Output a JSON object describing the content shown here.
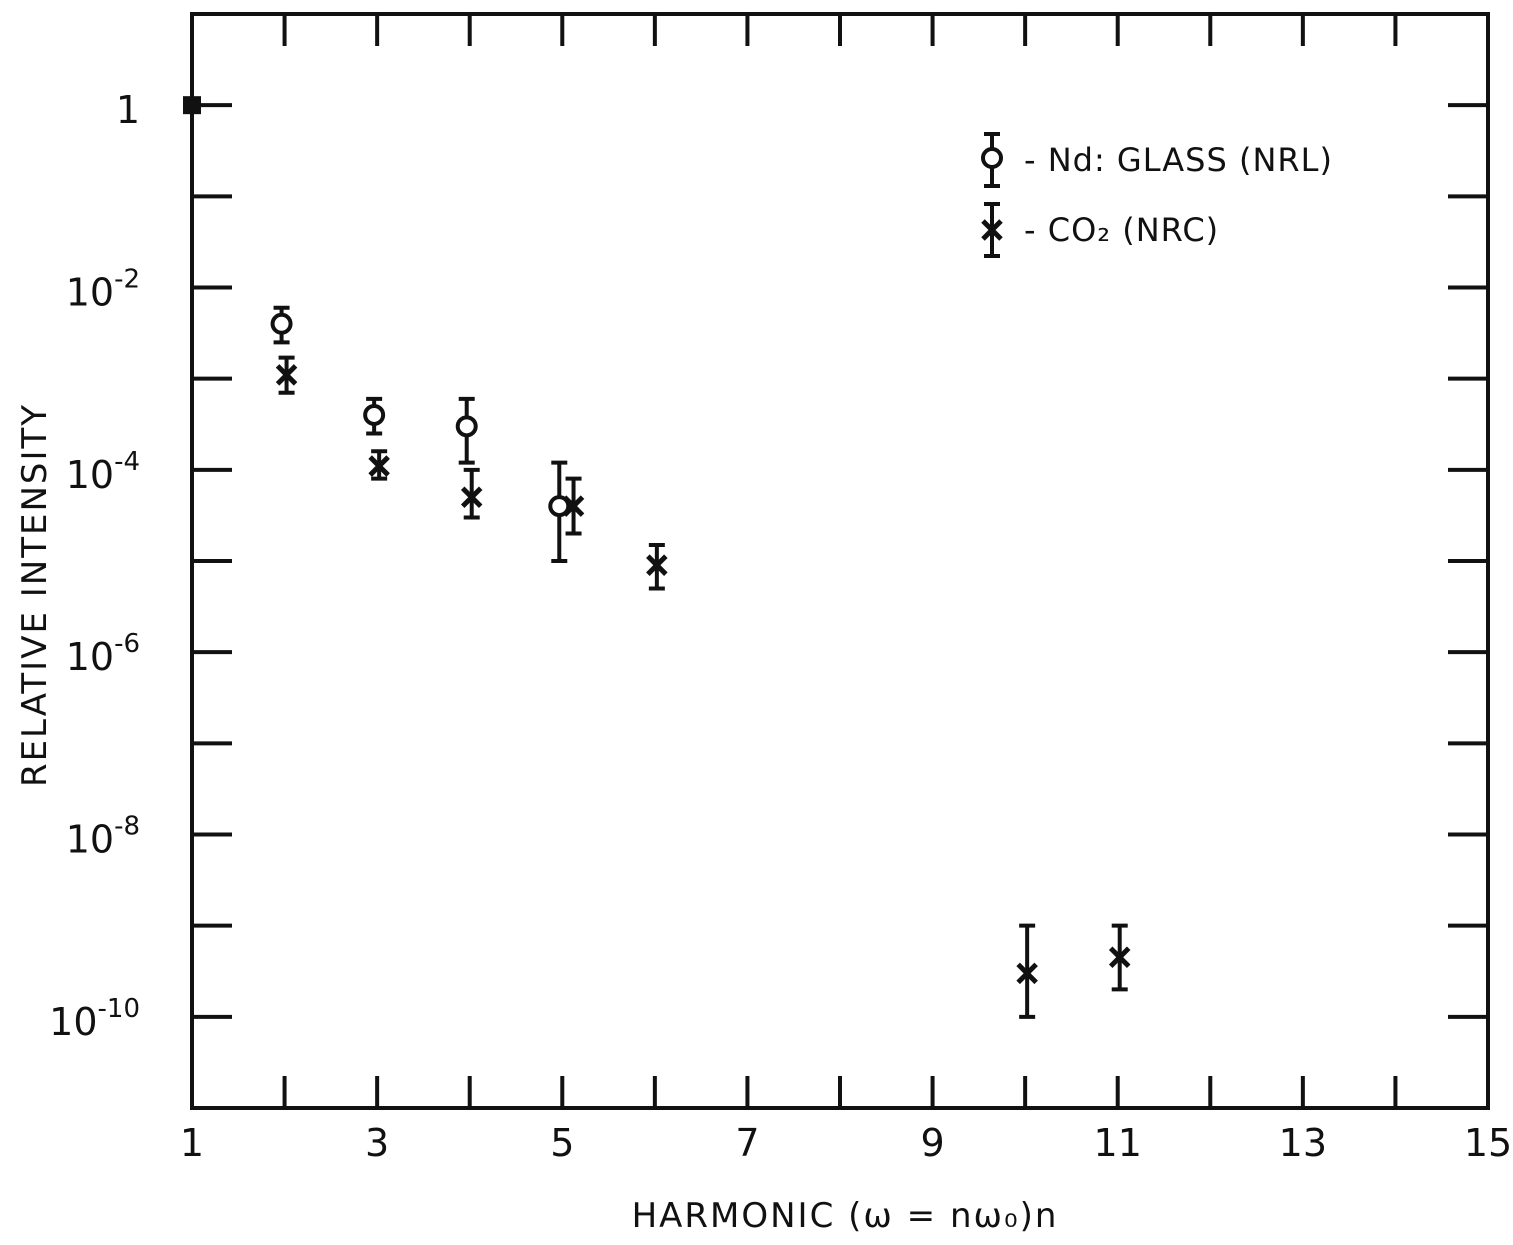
{
  "chart_data": {
    "type": "scatter",
    "title": "",
    "xlabel": "HARMONIC  (ω = nω₀)n",
    "ylabel": "RELATIVE INTENSITY",
    "xlim": [
      1,
      15
    ],
    "ylim": [
      1e-11,
      10
    ],
    "y_scale": "log",
    "grid": false,
    "legend_position": "top-right",
    "x_ticks": [
      1,
      3,
      5,
      7,
      9,
      11,
      13,
      15
    ],
    "x_tick_labels": [
      "1",
      "3",
      "5",
      "7",
      "9",
      "11",
      "13",
      "15"
    ],
    "y_tick_labels": [
      {
        "value": 1,
        "base": "1",
        "exp": ""
      },
      {
        "value": 0.01,
        "base": "10",
        "exp": "-2"
      },
      {
        "value": 0.0001,
        "base": "10",
        "exp": "-4"
      },
      {
        "value": 1e-06,
        "base": "10",
        "exp": "-6"
      },
      {
        "value": 1e-08,
        "base": "10",
        "exp": "-8"
      },
      {
        "value": 1e-10,
        "base": "10",
        "exp": "-10"
      }
    ],
    "reference_point": {
      "x": 1,
      "y": 1,
      "marker": "filled-square"
    },
    "series": [
      {
        "name": "Nd: GLASS (NRL)",
        "marker": "circle",
        "points": [
          {
            "x": 2,
            "y": 0.004,
            "y_low": 0.0025,
            "y_high": 0.006
          },
          {
            "x": 3,
            "y": 0.0004,
            "y_low": 0.00025,
            "y_high": 0.0006
          },
          {
            "x": 4,
            "y": 0.0003,
            "y_low": 0.00012,
            "y_high": 0.0006
          },
          {
            "x": 5,
            "y": 4e-05,
            "y_low": 1e-05,
            "y_high": 0.00012
          }
        ]
      },
      {
        "name": "CO₂ (NRC)",
        "marker": "x",
        "points": [
          {
            "x": 2,
            "y": 0.0011,
            "y_low": 0.0007,
            "y_high": 0.0017
          },
          {
            "x": 3,
            "y": 0.00011,
            "y_low": 8e-05,
            "y_high": 0.00016
          },
          {
            "x": 4,
            "y": 5e-05,
            "y_low": 3e-05,
            "y_high": 0.0001
          },
          {
            "x": 5.1,
            "y": 4e-05,
            "y_low": 2e-05,
            "y_high": 8e-05
          },
          {
            "x": 6,
            "y": 9e-06,
            "y_low": 5e-06,
            "y_high": 1.5e-05
          },
          {
            "x": 10,
            "y": 3e-10,
            "y_low": 1e-10,
            "y_high": 1e-09
          },
          {
            "x": 11,
            "y": 4.5e-10,
            "y_low": 2e-10,
            "y_high": 1e-09
          }
        ]
      }
    ]
  }
}
